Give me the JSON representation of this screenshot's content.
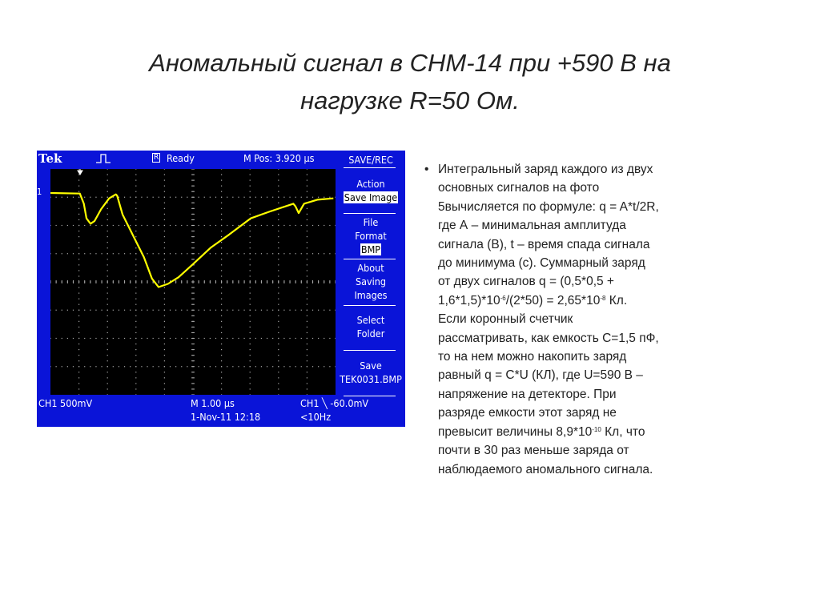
{
  "title": {
    "line1": "Аномальный сигнал в СНМ-14 при +590 В на",
    "line2": "нагрузке R=50 Ом."
  },
  "scope": {
    "brand": "Tek",
    "status": "Ready",
    "run_icon": "R",
    "mpos": "M Pos: 3.920 µs",
    "menu_title": "SAVE/REC",
    "action_label": "Action",
    "action_value": "Save Image",
    "file_label1": "File",
    "file_label2": "Format",
    "file_value": "BMP",
    "about1": "About",
    "about2": "Saving",
    "about3": "Images",
    "select1": "Select",
    "select2": "Folder",
    "save1": "Save",
    "save2": "TEK0031.BMP",
    "ch1_scale": "CH1  500mV",
    "timebase": "M 1.00 µs",
    "datetime": "1-Nov-11 12:18",
    "trigger": "CH1 ╲ -60.0mV",
    "freq": "<10Hz",
    "ch_marker": "1",
    "colors": {
      "background": "#0a14d8",
      "trace": "#ffff00",
      "screen": "#000000"
    }
  },
  "bullet": {
    "l1": "Интегральный заряд каждого из двух",
    "l2": "основных сигналов на фото",
    "l3": "5вычисляется по формуле: q = A*t/2R,",
    "l4": "где А – минимальная амплитуда",
    "l5": "сигнала (В), t – время спада сигнала",
    "l6": "до минимума (с). Суммарный заряд",
    "l7": "от двух сигналов q = (0,5*0,5 +",
    "l8a": "1,6*1,5)*10",
    "l8s1": "-6",
    "l8b": "/(2*50) = 2,65*10",
    "l8s2": "-8",
    "l8c": " Кл.",
    "l9": "Если коронный счетчик",
    "l10": "рассматривать, как емкость С=1,5 пФ,",
    "l11": "то на нем можно накопить заряд",
    "l12": "равный q = C*U (КЛ),  где U=590 В –",
    "l13": "напряжение на детекторе. При",
    "l14": "разряде емкости этот заряд не",
    "l15a": "превысит величины  8,9*10",
    "l15s": "-10",
    "l15b": " Кл, что",
    "l16": "почти в 30 раз меньше заряда  от",
    "l17": "наблюдаемого  аномального сигнала."
  }
}
